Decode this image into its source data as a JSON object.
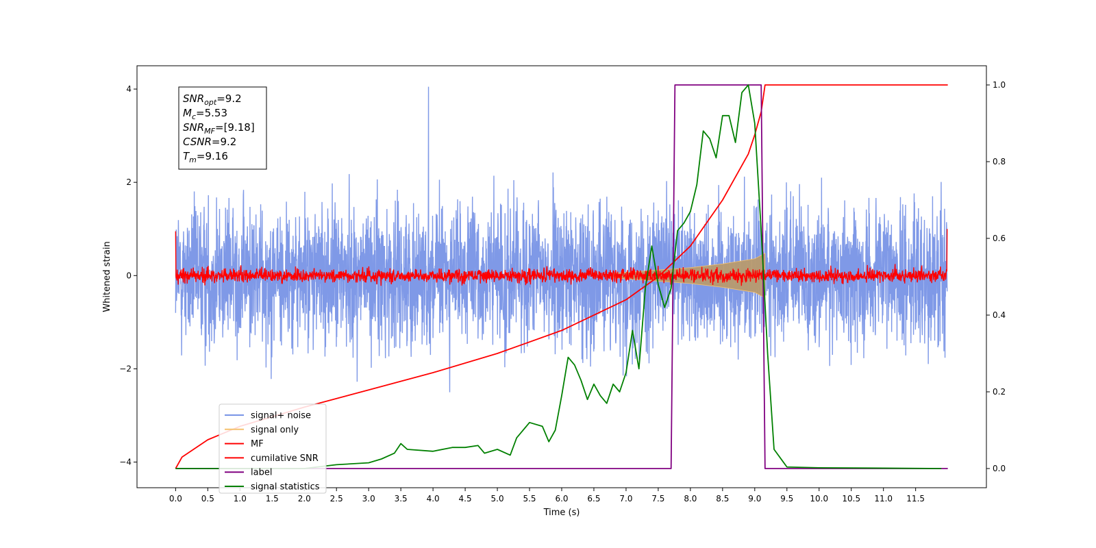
{
  "chart_data": {
    "type": "line",
    "xlabel": "Time (s)",
    "ylabel": "Whitened strain",
    "xlim": [
      -0.6,
      12.6
    ],
    "ylim": [
      -4.55,
      4.5
    ],
    "y2lim": [
      -0.05,
      1.05
    ],
    "x_ticks": [
      "0.0",
      "0.5",
      "1.0",
      "1.5",
      "2.0",
      "2.5",
      "3.0",
      "3.5",
      "4.0",
      "4.5",
      "5.0",
      "5.5",
      "6.0",
      "6.5",
      "7.0",
      "7.5",
      "8.0",
      "8.5",
      "9.0",
      "9.5",
      "10.0",
      "10.5",
      "11.0",
      "11.5"
    ],
    "y_ticks": [
      -4,
      -2,
      0,
      2,
      4
    ],
    "y_tick_labels": [
      "−4",
      "−2",
      "0",
      "2",
      "4"
    ],
    "y2_ticks": [
      0.0,
      0.2,
      0.4,
      0.6,
      0.8,
      1.0
    ],
    "y2_tick_labels": [
      "0.0",
      "0.2",
      "0.4",
      "0.6",
      "0.8",
      "1.0"
    ],
    "grid": false,
    "legend_position": "lower-left",
    "annotation": {
      "lines": [
        {
          "base": "SNR",
          "sub": "opt",
          "value": "=9.2"
        },
        {
          "base": "M",
          "sub": "c",
          "value": "=5.53"
        },
        {
          "base": "SNR",
          "sub": "MF",
          "value": "=[9.18]"
        },
        {
          "base": "CSNR",
          "sub": "",
          "value": "=9.2"
        },
        {
          "base": "T",
          "sub": "m",
          "value": "=9.16"
        }
      ]
    },
    "series": [
      {
        "name": "signal+ noise",
        "color": "#7894e6",
        "axis": "left",
        "kind": "noise",
        "amplitude": 1.0,
        "peak": 4.05
      },
      {
        "name": "signal only",
        "color": "#f5c16e",
        "fill": "#b89a6e",
        "axis": "left",
        "kind": "chirp",
        "x": [
          6.8,
          7.5,
          8.0,
          8.5,
          9.0,
          9.16
        ],
        "envelope": [
          0.05,
          0.12,
          0.17,
          0.25,
          0.36,
          0.48
        ]
      },
      {
        "name": "MF",
        "color": "#ff0000",
        "axis": "left",
        "kind": "noise",
        "amplitude": 0.1,
        "edge_values": [
          0.95,
          1.0
        ]
      },
      {
        "name": "cumilative SNR",
        "color": "#ff0000",
        "axis": "right",
        "x": [
          0.0,
          0.1,
          0.5,
          1.0,
          2.0,
          3.0,
          4.0,
          5.0,
          6.0,
          7.0,
          7.5,
          8.0,
          8.5,
          8.9,
          9.0,
          9.1,
          9.16,
          12.0
        ],
        "y": [
          0.0,
          0.03,
          0.075,
          0.11,
          0.16,
          0.205,
          0.25,
          0.3,
          0.36,
          0.44,
          0.5,
          0.58,
          0.7,
          0.82,
          0.87,
          0.93,
          1.0,
          1.0
        ]
      },
      {
        "name": "label",
        "color": "#800080",
        "axis": "right",
        "x": [
          0.0,
          7.7,
          7.76,
          9.1,
          9.16,
          12.0
        ],
        "y": [
          0.0,
          0.0,
          1.0,
          1.0,
          0.0,
          0.0
        ]
      },
      {
        "name": "signal statistics",
        "color": "#008000",
        "axis": "right",
        "x": [
          0.0,
          2.0,
          2.5,
          3.0,
          3.2,
          3.4,
          3.5,
          3.6,
          4.0,
          4.3,
          4.5,
          4.7,
          4.8,
          5.0,
          5.2,
          5.3,
          5.5,
          5.7,
          5.8,
          5.9,
          6.0,
          6.1,
          6.2,
          6.3,
          6.4,
          6.5,
          6.6,
          6.7,
          6.8,
          6.9,
          7.0,
          7.1,
          7.2,
          7.3,
          7.4,
          7.5,
          7.6,
          7.7,
          7.8,
          7.9,
          8.0,
          8.1,
          8.2,
          8.3,
          8.4,
          8.5,
          8.6,
          8.7,
          8.8,
          8.9,
          9.0,
          9.1,
          9.2,
          9.3,
          9.5,
          10.0,
          11.0,
          11.9
        ],
        "y": [
          0.0,
          0.0,
          0.01,
          0.015,
          0.025,
          0.04,
          0.065,
          0.05,
          0.045,
          0.055,
          0.055,
          0.06,
          0.04,
          0.05,
          0.035,
          0.08,
          0.12,
          0.11,
          0.07,
          0.1,
          0.19,
          0.29,
          0.27,
          0.23,
          0.18,
          0.22,
          0.19,
          0.17,
          0.22,
          0.2,
          0.25,
          0.36,
          0.26,
          0.47,
          0.58,
          0.48,
          0.42,
          0.47,
          0.62,
          0.64,
          0.67,
          0.74,
          0.88,
          0.86,
          0.81,
          0.92,
          0.92,
          0.85,
          0.98,
          1.0,
          0.9,
          0.62,
          0.3,
          0.05,
          0.004,
          0.002,
          0.001,
          0.0
        ]
      }
    ]
  }
}
